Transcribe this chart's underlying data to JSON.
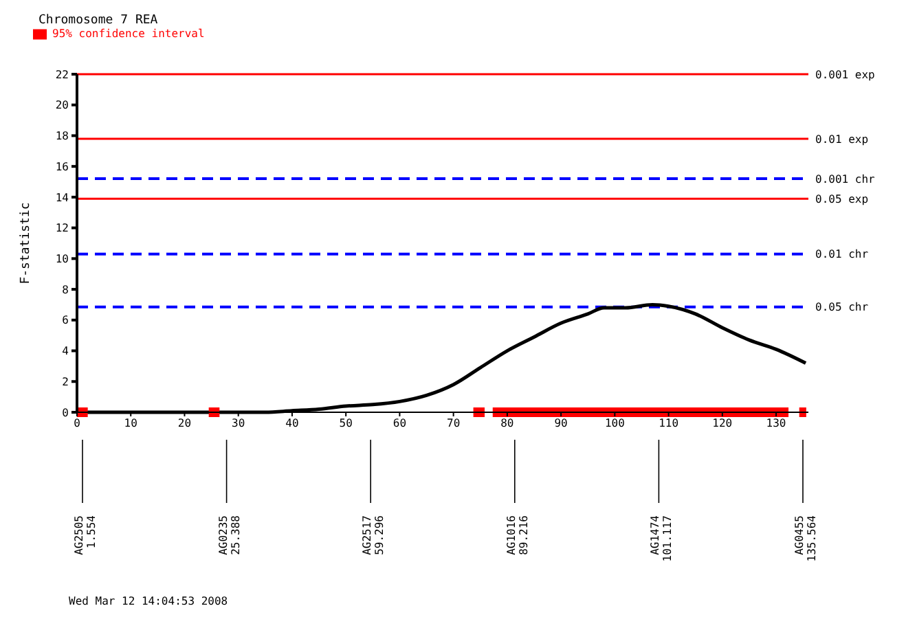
{
  "chart_data": {
    "type": "line",
    "title": "Chromosome 7  REA",
    "ylabel": "F-statistic",
    "xlim": [
      0,
      136
    ],
    "xticks": [
      0,
      10,
      20,
      30,
      40,
      50,
      60,
      70,
      80,
      90,
      100,
      110,
      120,
      130
    ],
    "ylim": [
      0,
      22
    ],
    "yticks": [
      0,
      2,
      4,
      6,
      8,
      10,
      12,
      14,
      16,
      18,
      20,
      22
    ],
    "grid": false,
    "legend": "top left",
    "marker": "none",
    "series": [
      {
        "color": "#000000",
        "line_style": "solid",
        "x": [
          0,
          10,
          20,
          30,
          35,
          40,
          45,
          50,
          55,
          60,
          65,
          70,
          75,
          80,
          85,
          90,
          95,
          98,
          102,
          107,
          110,
          115,
          120,
          125,
          130,
          135.5
        ],
        "values": [
          0,
          0,
          0,
          0,
          0,
          0.1,
          0.2,
          0.4,
          0.5,
          0.7,
          1.1,
          1.8,
          2.9,
          4.0,
          4.9,
          5.8,
          6.4,
          6.8,
          6.8,
          7.0,
          6.9,
          6.4,
          5.5,
          4.7,
          4.1,
          3.2
        ]
      },
      {
        "name": "95% confidence interval",
        "color": "#ff0000",
        "line_style": "solid",
        "x": [
          0,
          2,
          2.1,
          24.5,
          26.5,
          26.6,
          73.7,
          75.8,
          75.9,
          77.3,
          132.3,
          132.4,
          134.3,
          135.6
        ],
        "values": [
          0,
          0,
          null,
          0,
          0,
          null,
          0,
          0,
          null,
          0,
          0,
          null,
          0,
          0
        ]
      }
    ],
    "ref_lines": [
      {
        "axis": "y",
        "value": 22,
        "label": "0.001 exp",
        "color": "#ff0000",
        "line_style": "solid"
      },
      {
        "axis": "y",
        "value": 17.8,
        "label": "0.01 exp",
        "color": "#ff0000",
        "line_style": "solid"
      },
      {
        "axis": "y",
        "value": 15.2,
        "label": "0.001 chr",
        "color": "#0000ff",
        "line_style": "dashed"
      },
      {
        "axis": "y",
        "value": 13.9,
        "label": "0.05 exp",
        "color": "#ff0000",
        "line_style": "solid"
      },
      {
        "axis": "y",
        "value": 10.3,
        "label": "0.01 chr",
        "color": "#0000ff",
        "line_style": "dashed"
      },
      {
        "axis": "y",
        "value": 6.85,
        "label": "0.05 chr",
        "color": "#0000ff",
        "line_style": "dashed"
      }
    ],
    "annotations": [
      "AG2505\n1.554",
      "AG0235\n25.388",
      "AG2517\n59.296",
      "AG1016\n89.216",
      "AG1474\n101.117",
      "AG0455\n135.564",
      "Wed Mar 12 14:04:53 2008"
    ]
  }
}
